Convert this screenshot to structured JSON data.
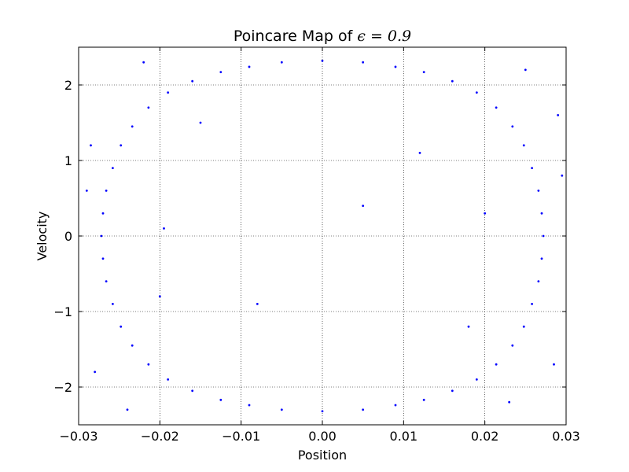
{
  "chart_data": {
    "type": "scatter",
    "title": "Poincare Map of",
    "title_math": "ϵ = 0.9",
    "xlabel": "Position",
    "ylabel": "Velocity",
    "xlim": [
      -0.03,
      0.03
    ],
    "ylim": [
      -2.5,
      2.5
    ],
    "xticks": [
      -0.03,
      -0.02,
      -0.01,
      0.0,
      0.01,
      0.02,
      0.03
    ],
    "xtick_labels": [
      "−0.03",
      "−0.02",
      "−0.01",
      "0.00",
      "0.01",
      "0.02",
      "0.03"
    ],
    "yticks": [
      2,
      1,
      0,
      -1,
      -2
    ],
    "ytick_labels": [
      "2",
      "1",
      "0",
      "−1",
      "−2"
    ],
    "grid": true,
    "marker_color": "#0000ff",
    "series": [
      {
        "points": [
          [
            -0.0272,
            0.0
          ],
          [
            -0.027,
            0.3
          ],
          [
            -0.027,
            -0.3
          ],
          [
            -0.0266,
            0.6
          ],
          [
            -0.0266,
            -0.6
          ],
          [
            -0.0258,
            0.9
          ],
          [
            -0.0258,
            -0.9
          ],
          [
            -0.0248,
            1.2
          ],
          [
            -0.0248,
            -1.2
          ],
          [
            -0.0234,
            1.45
          ],
          [
            -0.0234,
            -1.45
          ],
          [
            -0.0214,
            1.7
          ],
          [
            -0.0214,
            -1.7
          ],
          [
            -0.019,
            1.9
          ],
          [
            -0.019,
            -1.9
          ],
          [
            -0.016,
            2.05
          ],
          [
            -0.016,
            -2.05
          ],
          [
            -0.0125,
            2.17
          ],
          [
            -0.0125,
            -2.17
          ],
          [
            -0.009,
            2.24
          ],
          [
            -0.009,
            -2.24
          ],
          [
            -0.005,
            2.3
          ],
          [
            -0.005,
            -2.3
          ],
          [
            0.0,
            2.32
          ],
          [
            0.0,
            -2.32
          ],
          [
            0.005,
            2.3
          ],
          [
            0.005,
            -2.3
          ],
          [
            0.009,
            2.24
          ],
          [
            0.009,
            -2.24
          ],
          [
            0.0125,
            2.17
          ],
          [
            0.0125,
            -2.17
          ],
          [
            0.016,
            2.05
          ],
          [
            0.016,
            -2.05
          ],
          [
            0.019,
            1.9
          ],
          [
            0.019,
            -1.9
          ],
          [
            0.0214,
            1.7
          ],
          [
            0.0214,
            -1.7
          ],
          [
            0.0234,
            1.45
          ],
          [
            0.0234,
            -1.45
          ],
          [
            0.0248,
            1.2
          ],
          [
            0.0248,
            -1.2
          ],
          [
            0.0258,
            0.9
          ],
          [
            0.0258,
            -0.9
          ],
          [
            0.0266,
            0.6
          ],
          [
            0.0266,
            -0.6
          ],
          [
            0.027,
            0.3
          ],
          [
            0.027,
            -0.3
          ],
          [
            0.0272,
            0.0
          ],
          [
            -0.0285,
            1.2
          ],
          [
            -0.028,
            -1.8
          ],
          [
            0.029,
            1.6
          ],
          [
            0.0285,
            -1.7
          ],
          [
            -0.029,
            0.6
          ],
          [
            0.0295,
            0.8
          ],
          [
            -0.015,
            1.5
          ],
          [
            0.012,
            1.1
          ],
          [
            -0.02,
            -0.8
          ],
          [
            0.018,
            -1.2
          ],
          [
            -0.022,
            2.3
          ],
          [
            0.025,
            2.2
          ],
          [
            -0.024,
            -2.3
          ],
          [
            0.023,
            -2.2
          ],
          [
            0.005,
            0.4
          ],
          [
            -0.008,
            -0.9
          ],
          [
            -0.0195,
            0.1
          ],
          [
            0.02,
            0.3
          ]
        ]
      }
    ]
  }
}
